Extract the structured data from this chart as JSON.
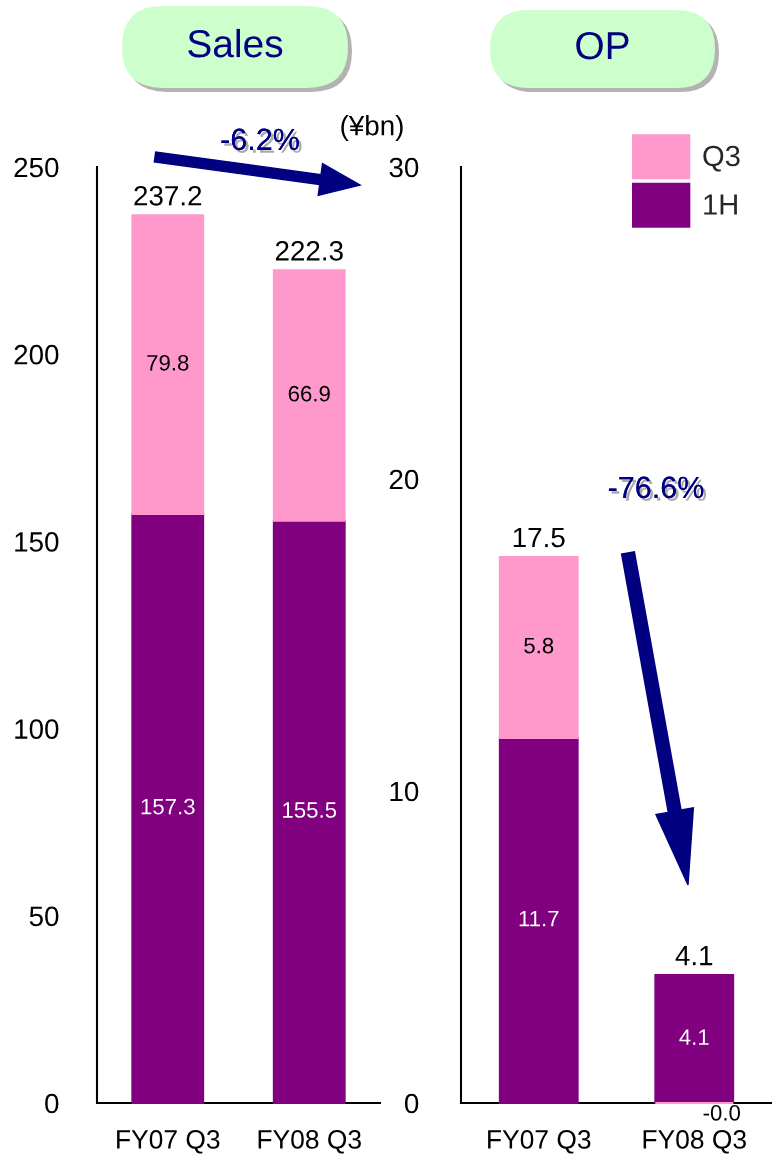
{
  "chart_data": [
    {
      "type": "bar",
      "title": "Sales",
      "categories": [
        "FY07 Q3",
        "FY08 Q3"
      ],
      "stacked": true,
      "series": [
        {
          "color": "#800080",
          "values": [
            157.3,
            155.5
          ],
          "value_labels": [
            "157.3",
            "155.5"
          ]
        },
        {
          "color": "#ff99cc",
          "values": [
            79.8,
            66.9
          ],
          "value_labels": [
            "79.8",
            "66.9"
          ]
        }
      ],
      "totals": [
        "237.2",
        "222.3"
      ],
      "ylim": [
        0,
        250
      ],
      "yticks": [
        0,
        50,
        100,
        150,
        200,
        250
      ],
      "annotations": [
        "-6.2%"
      ]
    },
    {
      "type": "bar",
      "title": "OP",
      "categories": [
        "FY07 Q3",
        "FY08 Q3"
      ],
      "stacked": true,
      "series": [
        {
          "name": "1H",
          "color": "#800080",
          "values": [
            11.7,
            4.1
          ],
          "value_labels": [
            "11.7",
            "4.1"
          ]
        },
        {
          "name": "Q3",
          "color": "#ff99cc",
          "values": [
            5.8,
            -0.0
          ],
          "value_labels": [
            "5.8",
            null
          ]
        }
      ],
      "totals": [
        "17.5",
        "4.1"
      ],
      "ylim": [
        0,
        30
      ],
      "yticks": [
        0,
        10,
        20,
        30
      ],
      "legend": "top right",
      "annotations": [
        "(¥bn)",
        "-76.6%",
        {
          "text": "-0.0",
          "x": "FY08 Q3",
          "y": 0
        }
      ]
    }
  ]
}
